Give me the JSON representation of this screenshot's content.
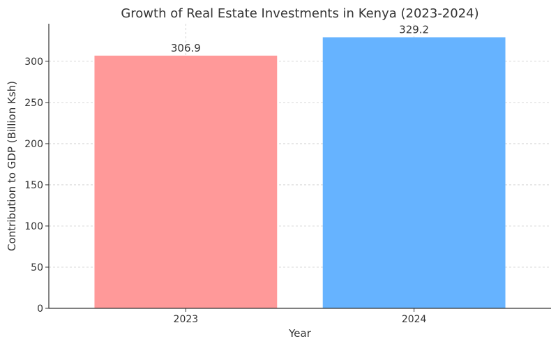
{
  "chart_data": {
    "type": "bar",
    "title": "Growth of Real Estate Investments in Kenya (2023-2024)",
    "xlabel": "Year",
    "ylabel": "Contribution to GDP (Billion Ksh)",
    "categories": [
      "2023",
      "2024"
    ],
    "values": [
      306.9,
      329.2
    ],
    "value_labels": [
      "306.9",
      "329.2"
    ],
    "colors": [
      "#ff9999",
      "#66b3ff"
    ],
    "ylim": [
      0,
      345.66
    ],
    "yticks": [
      0,
      50,
      100,
      150,
      200,
      250,
      300
    ],
    "grid": true
  }
}
